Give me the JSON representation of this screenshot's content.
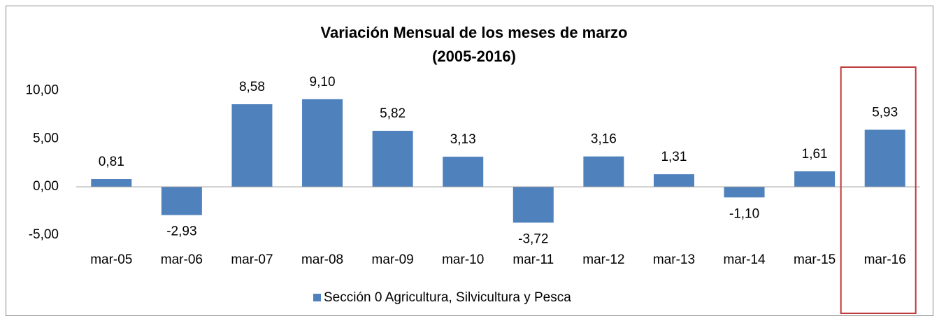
{
  "chart_data": {
    "type": "bar",
    "title": "Variación Mensual de los meses de marzo",
    "subtitle": "(2005-2016)",
    "categories": [
      "mar-05",
      "mar-06",
      "mar-07",
      "mar-08",
      "mar-09",
      "mar-10",
      "mar-11",
      "mar-12",
      "mar-13",
      "mar-14",
      "mar-15",
      "mar-16"
    ],
    "series": [
      {
        "name": "Sección 0 Agricultura, Silvicultura y Pesca",
        "color": "#4f81bd",
        "values": [
          0.81,
          -2.93,
          8.58,
          9.1,
          5.82,
          3.13,
          -3.72,
          3.16,
          1.31,
          -1.1,
          1.61,
          5.93
        ],
        "value_labels": [
          "0,81",
          "-2,93",
          "8,58",
          "9,10",
          "5,82",
          "3,13",
          "-3,72",
          "3,16",
          "1,31",
          "-1,10",
          "1,61",
          "5,93"
        ]
      }
    ],
    "ylim": [
      -5,
      10
    ],
    "yticks": [
      {
        "value": -5,
        "label": "-5,00"
      },
      {
        "value": 0,
        "label": "0,00"
      },
      {
        "value": 5,
        "label": "5,00"
      },
      {
        "value": 10,
        "label": "10,00"
      }
    ],
    "grid": false,
    "legend": "bottom"
  }
}
